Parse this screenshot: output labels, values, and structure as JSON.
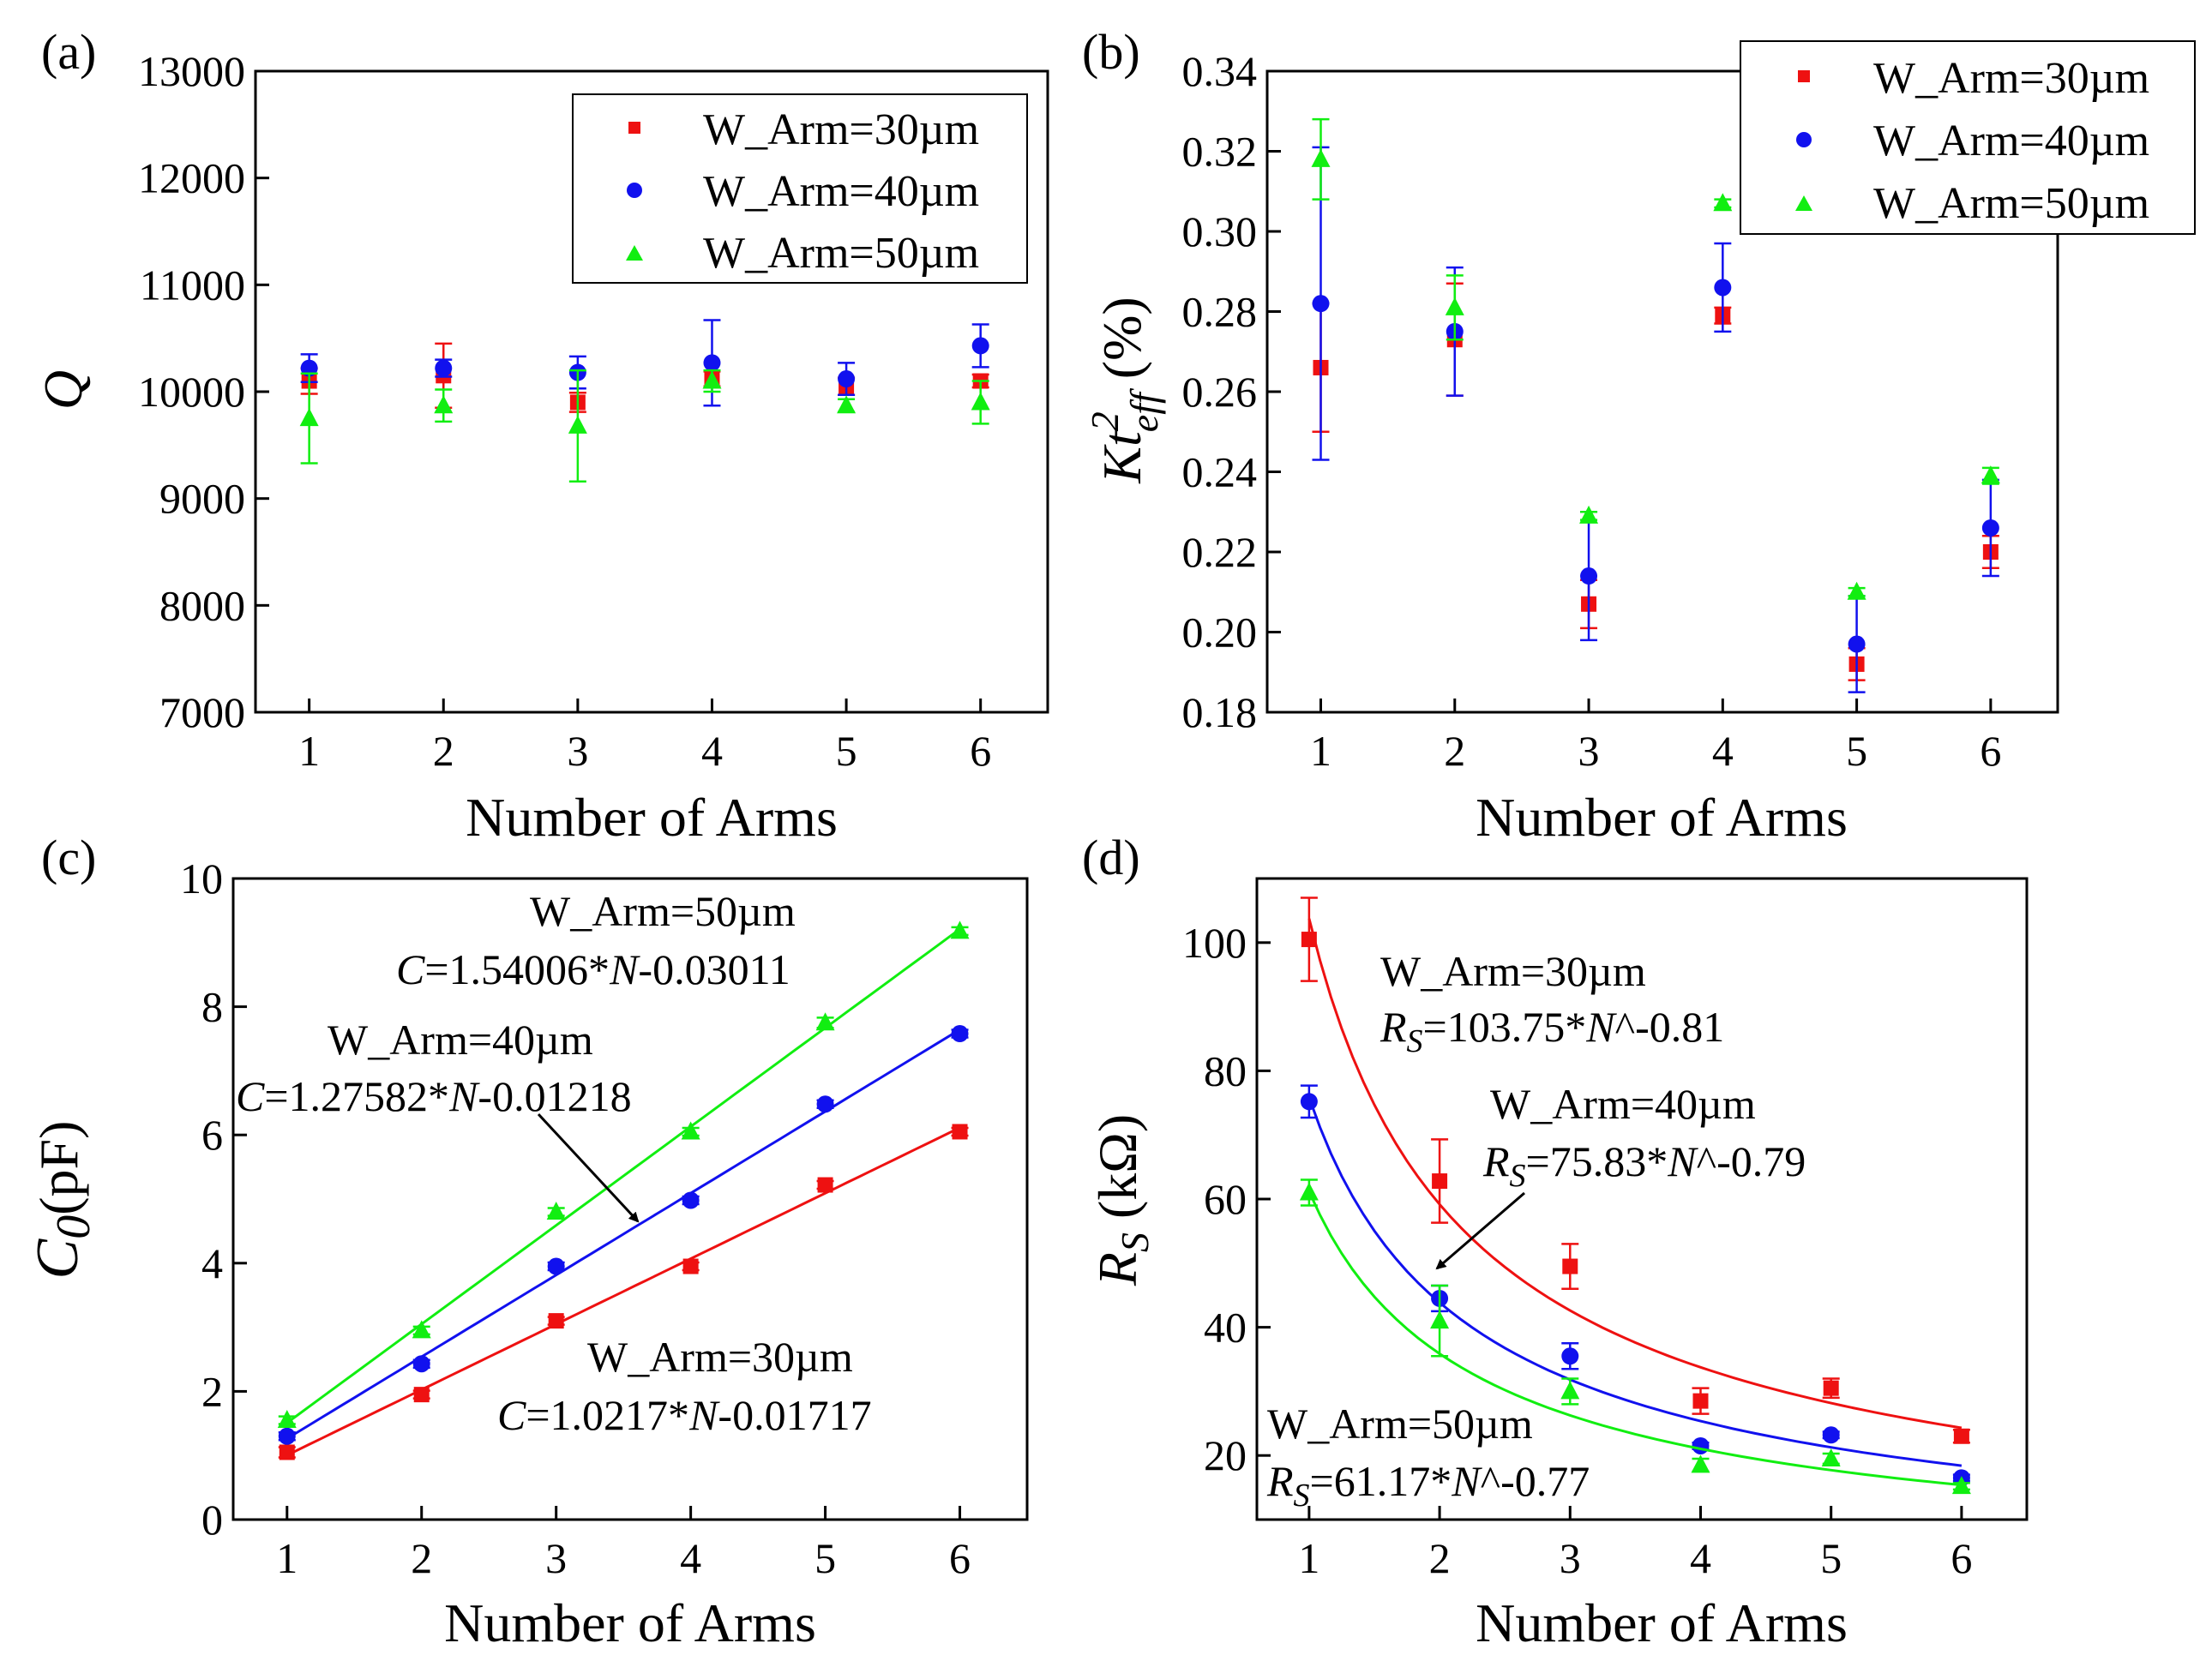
{
  "figure": {
    "panels": [
      {
        "id": "a",
        "label": "(a)",
        "xlabel": "Number of Arms",
        "ylabel_main": "Q",
        "ylabel_sub": "",
        "ylabel_tail": ""
      },
      {
        "id": "b",
        "label": "(b)",
        "xlabel": "Number of Arms",
        "ylabel_main": "Kt",
        "ylabel_sup": "2",
        "ylabel_sub": "eff",
        "ylabel_tail": " (%)"
      },
      {
        "id": "c",
        "label": "(c)",
        "xlabel": "Number of Arms",
        "ylabel_main": "C",
        "ylabel_sub": "0",
        "ylabel_tail": "(pF)"
      },
      {
        "id": "d",
        "label": "(d)",
        "xlabel": "Number of Arms",
        "ylabel_main": "R",
        "ylabel_sub": "S",
        "ylabel_tail": " (kΩ)"
      }
    ]
  },
  "chart_data": [
    {
      "panel": "a",
      "type": "scatter",
      "x": [
        1,
        2,
        3,
        4,
        5,
        6
      ],
      "xlim": [
        0.6,
        6.5
      ],
      "ylim": [
        7000,
        13000
      ],
      "yticks": [
        7000,
        8000,
        9000,
        10000,
        11000,
        12000,
        13000
      ],
      "ytick_labels": [
        "7000",
        "8000",
        "9000",
        "10000",
        "11000",
        "12000",
        "13000"
      ],
      "xticks": [
        1,
        2,
        3,
        4,
        5,
        6
      ],
      "xtick_labels": [
        "1",
        "2",
        "3",
        "4",
        "5",
        "6"
      ],
      "legend_position": "top-right",
      "series": [
        {
          "name": "W_Arm=30µm",
          "color": "#ee1111",
          "marker": "square",
          "values": [
            10100,
            10150,
            9900,
            10120,
            10050,
            10100
          ],
          "err": [
            120,
            300,
            90,
            70,
            80,
            60
          ]
        },
        {
          "name": "W_Arm=40µm",
          "color": "#1111ee",
          "marker": "circle",
          "values": [
            10220,
            10220,
            10180,
            10270,
            10120,
            10430
          ],
          "err": [
            130,
            80,
            150,
            400,
            150,
            200
          ]
        },
        {
          "name": "W_Arm=50µm",
          "color": "#11ee11",
          "marker": "triangle",
          "values": [
            9750,
            9870,
            9680,
            10100,
            9870,
            9900
          ],
          "err": [
            420,
            150,
            520,
            100,
            60,
            200
          ]
        }
      ]
    },
    {
      "panel": "b",
      "type": "scatter",
      "x": [
        1,
        2,
        3,
        4,
        5,
        6
      ],
      "xlim": [
        0.6,
        6.5
      ],
      "ylim": [
        0.18,
        0.34
      ],
      "yticks": [
        0.18,
        0.2,
        0.22,
        0.24,
        0.26,
        0.28,
        0.3,
        0.32,
        0.34
      ],
      "ytick_labels": [
        "0.18",
        "0.20",
        "0.22",
        "0.24",
        "0.26",
        "0.28",
        "0.30",
        "0.32",
        "0.34"
      ],
      "xticks": [
        1,
        2,
        3,
        4,
        5,
        6
      ],
      "xtick_labels": [
        "1",
        "2",
        "3",
        "4",
        "5",
        "6"
      ],
      "legend_position": "top-right",
      "series": [
        {
          "name": "W_Arm=30µm",
          "color": "#ee1111",
          "marker": "square",
          "values": [
            0.266,
            0.273,
            0.207,
            0.279,
            0.192,
            0.22
          ],
          "err": [
            0.016,
            0.014,
            0.006,
            0.002,
            0.004,
            0.004
          ]
        },
        {
          "name": "W_Arm=40µm",
          "color": "#1111ee",
          "marker": "circle",
          "values": [
            0.282,
            0.275,
            0.214,
            0.286,
            0.197,
            0.226
          ],
          "err": [
            0.039,
            0.016,
            0.016,
            0.011,
            0.012,
            0.012
          ]
        },
        {
          "name": "W_Arm=50µm",
          "color": "#11ee11",
          "marker": "triangle",
          "values": [
            0.318,
            0.281,
            0.229,
            0.307,
            0.21,
            0.239
          ],
          "err": [
            0.01,
            0.008,
            0.001,
            0.001,
            0.001,
            0.002
          ]
        }
      ]
    },
    {
      "panel": "c",
      "type": "scatter",
      "x": [
        1,
        2,
        3,
        4,
        5,
        6
      ],
      "xlim": [
        0.6,
        6.5
      ],
      "ylim": [
        0,
        10
      ],
      "yticks": [
        0,
        2,
        4,
        6,
        8,
        10
      ],
      "ytick_labels": [
        "0",
        "2",
        "4",
        "6",
        "8",
        "10"
      ],
      "xticks": [
        1,
        2,
        3,
        4,
        5,
        6
      ],
      "xtick_labels": [
        "1",
        "2",
        "3",
        "4",
        "5",
        "6"
      ],
      "series": [
        {
          "name": "W_Arm=30µm",
          "color": "#ee1111",
          "marker": "square",
          "values": [
            1.05,
            1.95,
            3.1,
            3.95,
            5.22,
            6.05
          ],
          "err": [
            0.08,
            0.06,
            0.06,
            0.06,
            0.06,
            0.06
          ],
          "fit": {
            "kind": "linear",
            "a": 1.0217,
            "b": -0.01717
          }
        },
        {
          "name": "W_Arm=40µm",
          "color": "#1111ee",
          "marker": "circle",
          "values": [
            1.3,
            2.43,
            3.95,
            4.98,
            6.48,
            7.58
          ],
          "err": [
            0.06,
            0.06,
            0.06,
            0.06,
            0.06,
            0.06
          ],
          "fit": {
            "kind": "linear",
            "a": 1.27582,
            "b": -0.01218
          }
        },
        {
          "name": "W_Arm=50µm",
          "color": "#11ee11",
          "marker": "triangle",
          "values": [
            1.55,
            2.95,
            4.8,
            6.05,
            7.75,
            9.18
          ],
          "err": [
            0.06,
            0.06,
            0.06,
            0.06,
            0.08,
            0.06
          ],
          "fit": {
            "kind": "linear",
            "a": 1.54006,
            "b": -0.03011
          }
        }
      ],
      "annotations": [
        {
          "id": "c50",
          "line1": "W_Arm=50µm",
          "eq_var": "C",
          "eq_mid": "=1.54006*",
          "eq_n": "N",
          "eq_tail": "-0.03011"
        },
        {
          "id": "c40",
          "line1": "W_Arm=40µm",
          "eq_var": "C",
          "eq_mid": "=1.27582*",
          "eq_n": "N",
          "eq_tail": "-0.01218"
        },
        {
          "id": "c30",
          "line1": "W_Arm=30µm",
          "eq_var": "C",
          "eq_mid": "=1.0217*",
          "eq_n": "N",
          "eq_tail": "-0.01717"
        }
      ]
    },
    {
      "panel": "d",
      "type": "scatter",
      "x": [
        1,
        2,
        3,
        4,
        5,
        6
      ],
      "xlim": [
        0.6,
        6.5
      ],
      "ylim": [
        10,
        110
      ],
      "yticks": [
        20,
        40,
        60,
        80,
        100
      ],
      "ytick_labels": [
        "20",
        "40",
        "60",
        "80",
        "100"
      ],
      "xticks": [
        1,
        2,
        3,
        4,
        5,
        6
      ],
      "xtick_labels": [
        "1",
        "2",
        "3",
        "4",
        "5",
        "6"
      ],
      "series": [
        {
          "name": "W_Arm=30µm",
          "color": "#ee1111",
          "marker": "square",
          "values": [
            100.5,
            62.8,
            49.5,
            28.5,
            30.5,
            23.0
          ],
          "err": [
            6.5,
            6.5,
            3.5,
            2.0,
            1.5,
            1.0
          ],
          "fit": {
            "kind": "power",
            "a": 103.75,
            "b": -0.81
          }
        },
        {
          "name": "W_Arm=40µm",
          "color": "#1111ee",
          "marker": "circle",
          "values": [
            75.2,
            44.5,
            35.5,
            21.5,
            23.2,
            16.5
          ],
          "err": [
            2.5,
            2.0,
            2.0,
            0.5,
            0.5,
            0.5
          ],
          "fit": {
            "kind": "power",
            "a": 75.83,
            "b": -0.79
          }
        },
        {
          "name": "W_Arm=50µm",
          "color": "#11ee11",
          "marker": "triangle",
          "values": [
            61.0,
            41.0,
            30.0,
            18.5,
            19.5,
            15.2
          ],
          "err": [
            2.0,
            5.5,
            2.0,
            1.0,
            0.8,
            0.5
          ],
          "fit": {
            "kind": "power",
            "a": 61.17,
            "b": -0.77
          }
        }
      ],
      "annotations": [
        {
          "id": "d30",
          "line1": "W_Arm=30µm",
          "eq_var": "R",
          "eq_sub": "S",
          "eq_mid": "=103.75*",
          "eq_n": "N",
          "eq_tail": "^-0.81"
        },
        {
          "id": "d40",
          "line1": "W_Arm=40µm",
          "eq_var": "R",
          "eq_sub": "S",
          "eq_mid": "=75.83*",
          "eq_n": "N",
          "eq_tail": "^-0.79"
        },
        {
          "id": "d50",
          "line1": "W_Arm=50µm",
          "eq_var": "R",
          "eq_sub": "S",
          "eq_mid": "=61.17*",
          "eq_n": "N",
          "eq_tail": "^-0.77"
        }
      ]
    }
  ]
}
